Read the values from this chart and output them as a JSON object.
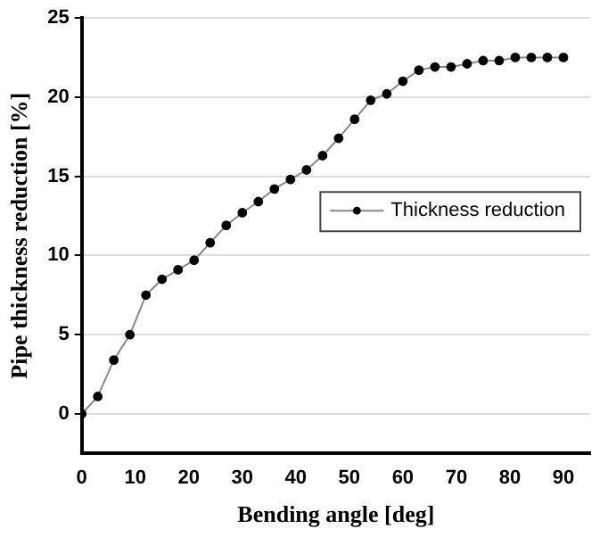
{
  "chart_data": {
    "type": "line",
    "xlabel": "Bending angle [deg]",
    "ylabel": "Pipe thickness reduction [%]",
    "x": [
      0,
      3,
      6,
      9,
      12,
      15,
      18,
      21,
      24,
      27,
      30,
      33,
      36,
      39,
      42,
      45,
      48,
      51,
      54,
      57,
      60,
      63,
      66,
      69,
      72,
      75,
      78,
      81,
      84,
      87,
      90
    ],
    "series": [
      {
        "name": "Thickness reduction",
        "color": "#000000",
        "values": [
          0,
          1.1,
          3.4,
          5,
          7.5,
          8.5,
          9.1,
          9.7,
          10.8,
          11.9,
          12.7,
          13.4,
          14.2,
          14.8,
          15.4,
          16.3,
          17.4,
          18.6,
          19.8,
          20.2,
          21,
          21.7,
          21.9,
          21.9,
          22.1,
          22.3,
          22.3,
          22.5,
          22.5,
          22.5,
          22.5
        ]
      }
    ],
    "xlim": [
      0,
      95
    ],
    "xticks": [
      0,
      10,
      20,
      30,
      40,
      50,
      60,
      70,
      80,
      90
    ],
    "ylim": [
      -2.5,
      25
    ],
    "yticks": [
      0,
      5,
      10,
      15,
      20,
      25
    ],
    "grid": "y",
    "legend": "right",
    "marker": "circle",
    "line_style": "solid"
  }
}
